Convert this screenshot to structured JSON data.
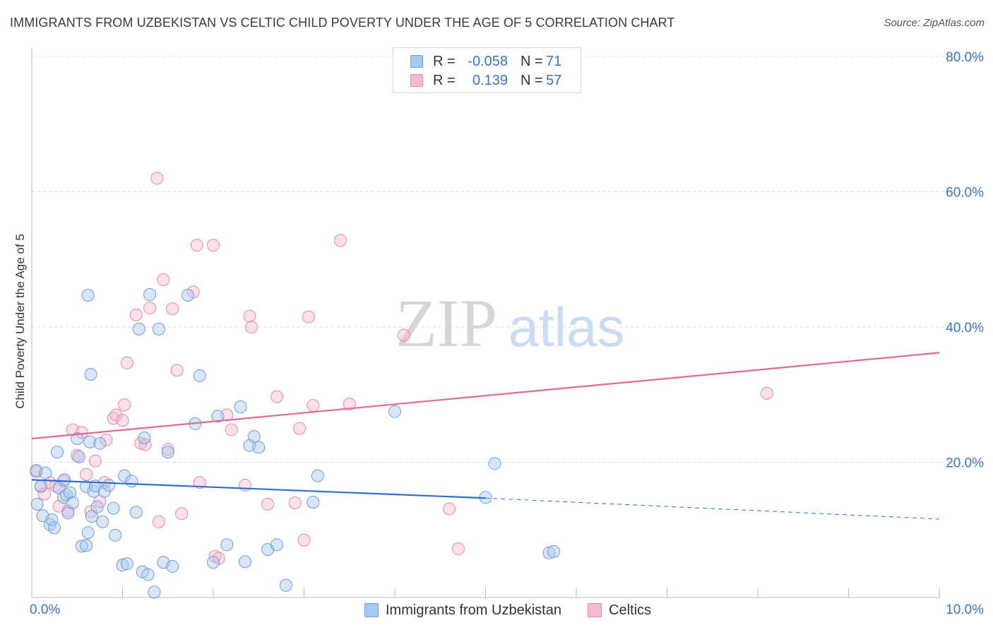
{
  "title": "IMMIGRANTS FROM UZBEKISTAN VS CELTIC CHILD POVERTY UNDER THE AGE OF 5 CORRELATION CHART",
  "source": "Source: ZipAtlas.com",
  "watermark": {
    "zip": "ZIP",
    "atlas": "atlas"
  },
  "colors": {
    "blue_fill": "#a9c8ef",
    "blue_stroke": "#6f9fdc",
    "blue_line": "#2f6fce",
    "pink_fill": "#f6bccd",
    "pink_stroke": "#e88aa8",
    "pink_line": "#e06b93",
    "axis_text": "#3b73d1",
    "grid": "#dcdcdc"
  },
  "legend": {
    "rows": [
      {
        "r_label": "R =",
        "r_value": "-0.058",
        "n_label": "N =",
        "n_value": "71"
      },
      {
        "r_label": "R =",
        "r_value": "0.139",
        "n_label": "N =",
        "n_value": "57"
      }
    ]
  },
  "bottom_legend": {
    "series1": "Immigrants from Uzbekistan",
    "series2": "Celtics"
  },
  "chart_data": {
    "type": "scatter",
    "xlabel": "",
    "ylabel": "Child Poverty Under the Age of 5",
    "xlim": [
      0,
      10
    ],
    "ylim": [
      0,
      80
    ],
    "x_tick_labels": [
      "0.0%",
      "10.0%"
    ],
    "y_ticks": [
      20,
      40,
      60,
      80
    ],
    "y_tick_labels": [
      "20.0%",
      "40.0%",
      "60.0%",
      "80.0%"
    ],
    "grid": true,
    "legend_position": "top-center",
    "series": [
      {
        "name": "Immigrants from Uzbekistan",
        "color": "blue",
        "r": -0.058,
        "n": 71,
        "trend": {
          "x0": 0,
          "y0": 17.4,
          "x1": 5.0,
          "y1": 14.7,
          "dash_x1": 10.0,
          "dash_y1": 11.6
        },
        "points": [
          [
            0.05,
            18.8
          ],
          [
            0.06,
            13.8
          ],
          [
            0.1,
            16.5
          ],
          [
            0.15,
            18.4
          ],
          [
            0.12,
            12.1
          ],
          [
            0.2,
            10.8
          ],
          [
            0.22,
            11.5
          ],
          [
            0.25,
            10.3
          ],
          [
            0.3,
            16.2
          ],
          [
            0.28,
            21.5
          ],
          [
            0.35,
            14.8
          ],
          [
            0.36,
            17.4
          ],
          [
            0.38,
            15.2
          ],
          [
            0.4,
            12.5
          ],
          [
            0.42,
            15.5
          ],
          [
            0.45,
            14.0
          ],
          [
            0.5,
            23.5
          ],
          [
            0.52,
            20.8
          ],
          [
            0.55,
            7.6
          ],
          [
            0.6,
            16.4
          ],
          [
            0.62,
            9.6
          ],
          [
            0.64,
            23.0
          ],
          [
            0.66,
            12.0
          ],
          [
            0.68,
            15.7
          ],
          [
            0.7,
            16.5
          ],
          [
            0.72,
            13.4
          ],
          [
            0.75,
            22.8
          ],
          [
            0.78,
            11.2
          ],
          [
            0.8,
            15.7
          ],
          [
            0.85,
            16.6
          ],
          [
            0.9,
            13.2
          ],
          [
            0.92,
            9.2
          ],
          [
            1.0,
            4.8
          ],
          [
            1.02,
            18.0
          ],
          [
            1.05,
            5.0
          ],
          [
            1.1,
            17.2
          ],
          [
            1.15,
            12.6
          ],
          [
            1.22,
            3.8
          ],
          [
            1.24,
            23.6
          ],
          [
            1.28,
            3.4
          ],
          [
            1.35,
            0.8
          ],
          [
            1.4,
            39.7
          ],
          [
            1.45,
            5.2
          ],
          [
            1.5,
            21.5
          ],
          [
            1.55,
            4.6
          ],
          [
            1.72,
            44.7
          ],
          [
            1.3,
            44.8
          ],
          [
            0.6,
            7.7
          ],
          [
            0.65,
            33.0
          ],
          [
            0.62,
            44.7
          ],
          [
            1.18,
            39.7
          ],
          [
            1.85,
            32.8
          ],
          [
            1.8,
            25.7
          ],
          [
            2.0,
            5.2
          ],
          [
            2.05,
            26.8
          ],
          [
            2.15,
            7.8
          ],
          [
            2.3,
            28.2
          ],
          [
            2.35,
            5.3
          ],
          [
            2.4,
            22.5
          ],
          [
            2.45,
            23.8
          ],
          [
            2.5,
            22.2
          ],
          [
            2.6,
            7.1
          ],
          [
            2.7,
            7.8
          ],
          [
            2.8,
            1.8
          ],
          [
            3.1,
            14.1
          ],
          [
            3.15,
            18.0
          ],
          [
            4.0,
            27.5
          ],
          [
            5.0,
            14.8
          ],
          [
            5.1,
            19.8
          ],
          [
            5.7,
            6.6
          ],
          [
            5.75,
            6.8
          ]
        ]
      },
      {
        "name": "Celtics",
        "color": "pink",
        "r": 0.139,
        "n": 57,
        "trend": {
          "x0": 0,
          "y0": 23.5,
          "x1": 10.0,
          "y1": 36.2
        },
        "points": [
          [
            0.05,
            18.6
          ],
          [
            0.1,
            16.4
          ],
          [
            0.14,
            15.3
          ],
          [
            0.2,
            17.0
          ],
          [
            0.26,
            16.5
          ],
          [
            0.3,
            13.5
          ],
          [
            0.35,
            17.2
          ],
          [
            0.4,
            12.8
          ],
          [
            0.45,
            24.8
          ],
          [
            0.5,
            21.0
          ],
          [
            0.55,
            24.4
          ],
          [
            0.6,
            18.2
          ],
          [
            0.65,
            12.7
          ],
          [
            0.7,
            20.2
          ],
          [
            0.75,
            14.2
          ],
          [
            0.8,
            17.0
          ],
          [
            0.82,
            23.3
          ],
          [
            0.9,
            26.5
          ],
          [
            0.93,
            27.0
          ],
          [
            1.0,
            26.2
          ],
          [
            1.02,
            28.5
          ],
          [
            1.05,
            34.7
          ],
          [
            1.15,
            41.8
          ],
          [
            1.2,
            22.8
          ],
          [
            1.25,
            22.6
          ],
          [
            1.3,
            42.8
          ],
          [
            1.4,
            11.2
          ],
          [
            1.45,
            47.0
          ],
          [
            1.5,
            21.9
          ],
          [
            1.55,
            42.7
          ],
          [
            1.6,
            33.6
          ],
          [
            1.65,
            12.4
          ],
          [
            1.78,
            45.2
          ],
          [
            1.82,
            52.1
          ],
          [
            1.85,
            17.0
          ],
          [
            2.0,
            52.1
          ],
          [
            2.02,
            6.1
          ],
          [
            2.06,
            5.8
          ],
          [
            2.15,
            27.0
          ],
          [
            2.2,
            24.8
          ],
          [
            2.35,
            16.6
          ],
          [
            2.4,
            41.6
          ],
          [
            2.42,
            40.0
          ],
          [
            2.6,
            13.8
          ],
          [
            2.7,
            29.7
          ],
          [
            2.9,
            14.0
          ],
          [
            2.95,
            25.0
          ],
          [
            3.0,
            8.5
          ],
          [
            3.05,
            41.5
          ],
          [
            3.1,
            28.4
          ],
          [
            3.4,
            52.8
          ],
          [
            3.5,
            28.6
          ],
          [
            4.1,
            38.8
          ],
          [
            4.6,
            13.1
          ],
          [
            4.7,
            7.2
          ],
          [
            8.1,
            30.2
          ],
          [
            1.38,
            62.0
          ]
        ]
      }
    ]
  }
}
